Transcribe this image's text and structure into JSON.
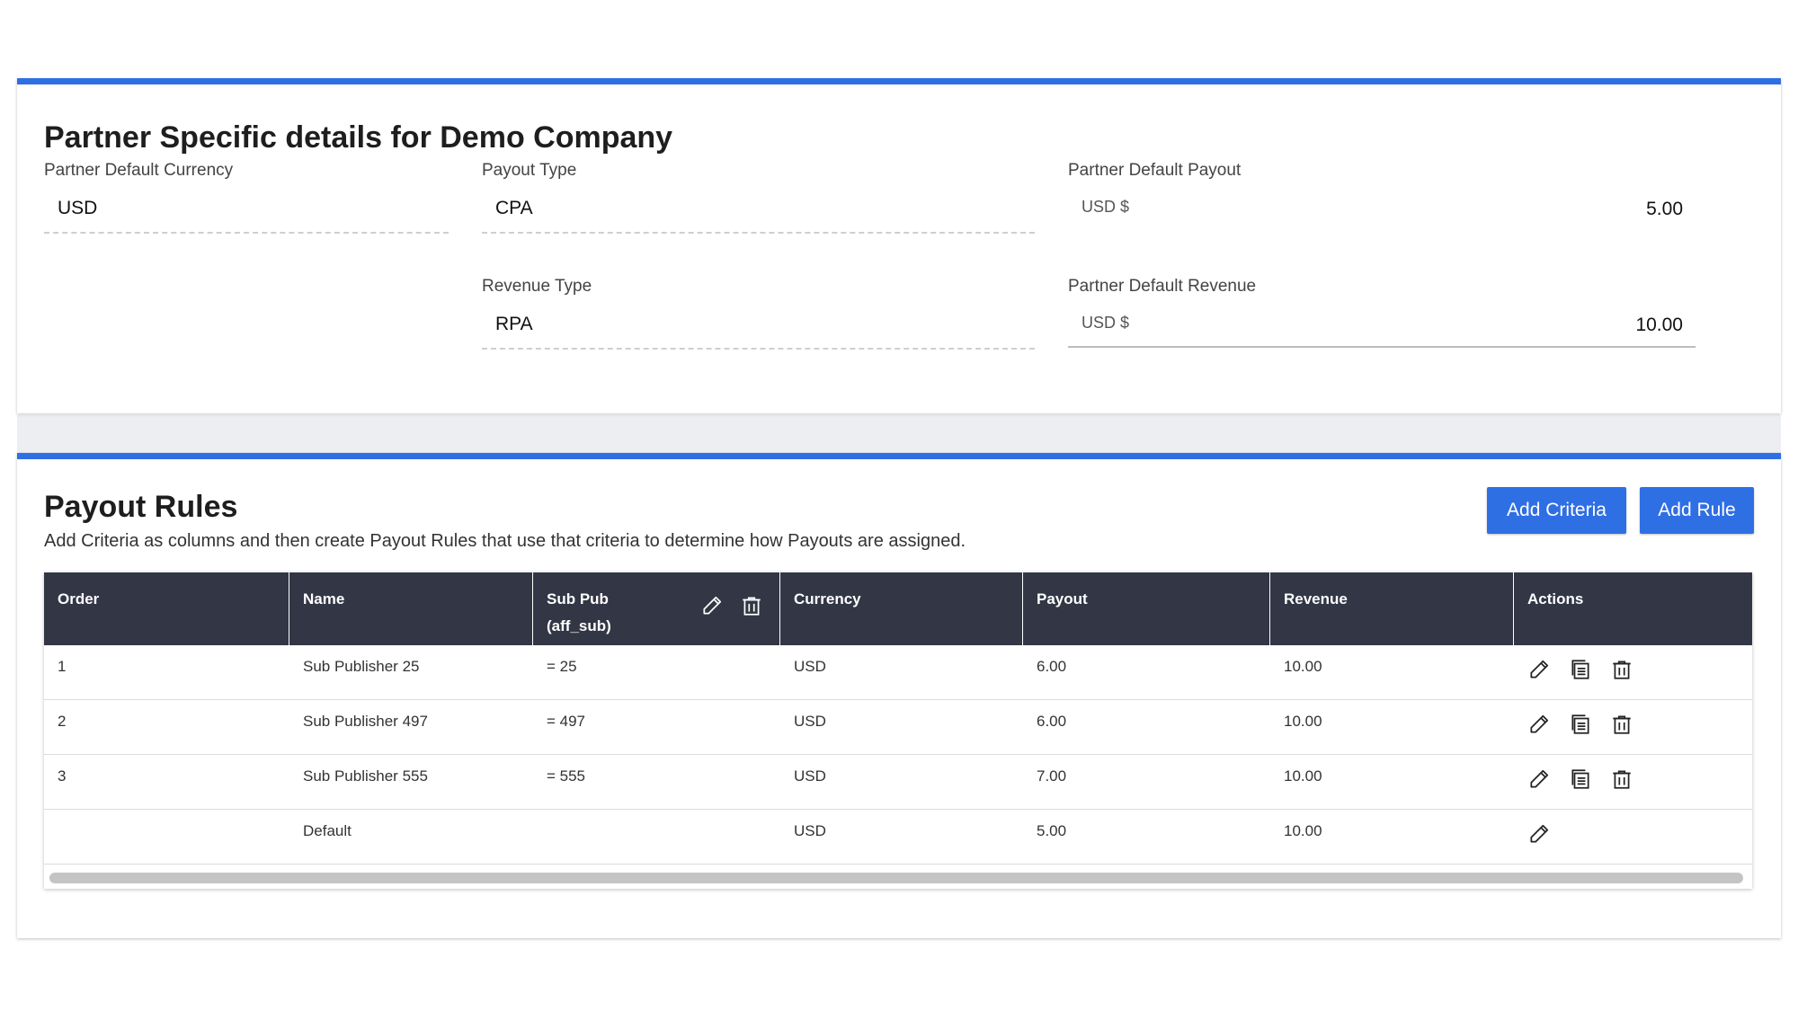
{
  "partner_details": {
    "title": "Partner Specific details for Demo Company",
    "default_currency": {
      "label": "Partner Default Currency",
      "value": "USD"
    },
    "payout_type": {
      "label": "Payout Type",
      "value": "CPA"
    },
    "revenue_type": {
      "label": "Revenue Type",
      "value": "RPA"
    },
    "default_payout": {
      "label": "Partner Default Payout",
      "prefix": "USD $",
      "value": "5.00"
    },
    "default_revenue": {
      "label": "Partner Default Revenue",
      "prefix": "USD $",
      "value": "10.00"
    }
  },
  "payout_rules": {
    "title": "Payout Rules",
    "subtitle": "Add Criteria as columns and then create Payout Rules that use that criteria to determine how Payouts are assigned.",
    "add_criteria_label": "Add Criteria",
    "add_rule_label": "Add Rule",
    "columns": {
      "order": "Order",
      "name": "Name",
      "subpub_line1": "Sub Pub",
      "subpub_line2": "(aff_sub)",
      "currency": "Currency",
      "payout": "Payout",
      "revenue": "Revenue",
      "actions": "Actions"
    },
    "rows": [
      {
        "order": "1",
        "name": "Sub Publisher 25",
        "subpub": "= 25",
        "currency": "USD",
        "payout": "6.00",
        "revenue": "10.00"
      },
      {
        "order": "2",
        "name": "Sub Publisher 497",
        "subpub": "= 497",
        "currency": "USD",
        "payout": "6.00",
        "revenue": "10.00"
      },
      {
        "order": "3",
        "name": "Sub Publisher 555",
        "subpub": "= 555",
        "currency": "USD",
        "payout": "7.00",
        "revenue": "10.00"
      },
      {
        "order": "",
        "name": "Default",
        "subpub": "",
        "currency": "USD",
        "payout": "5.00",
        "revenue": "10.00"
      }
    ]
  },
  "colors": {
    "accent": "#2f6fe4",
    "table_header": "#323645"
  },
  "icons": [
    "pencil-icon",
    "copy-icon",
    "trash-icon"
  ]
}
